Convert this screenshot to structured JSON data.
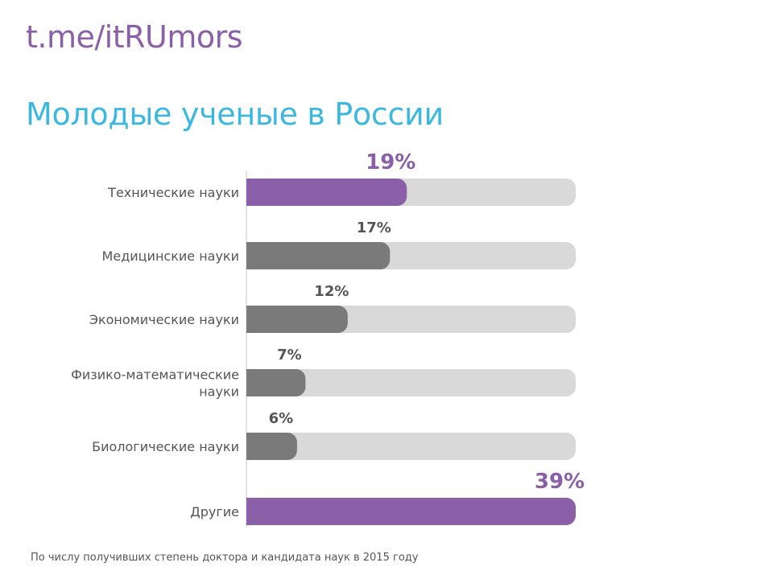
{
  "header": {
    "brand": "t.me/itRUmors"
  },
  "footnote": "По числу получивших степень доктора и кандидата наук в 2015 году",
  "colors": {
    "highlight": "#8a5fa8",
    "bar": "#7a7a7a",
    "track": "#d9d9d9",
    "label": "#555555",
    "title": "#3cb8e0"
  },
  "chart_data": {
    "type": "bar",
    "orientation": "horizontal",
    "title": "Молодые ученые в России",
    "categories": [
      [
        "Технические науки"
      ],
      [
        "Медицинские науки"
      ],
      [
        "Экономические науки"
      ],
      [
        "Физико-математические",
        "науки"
      ],
      [
        "Биологические науки"
      ],
      [
        "Другие"
      ]
    ],
    "values": [
      19,
      17,
      12,
      7,
      6,
      39
    ],
    "value_labels": [
      "19%",
      "17%",
      "12%",
      "7%",
      "6%",
      "39%"
    ],
    "highlighted": [
      true,
      false,
      false,
      false,
      false,
      true
    ],
    "unit": "%",
    "xlim": [
      0,
      39
    ],
    "grid": false,
    "legend": "none"
  }
}
